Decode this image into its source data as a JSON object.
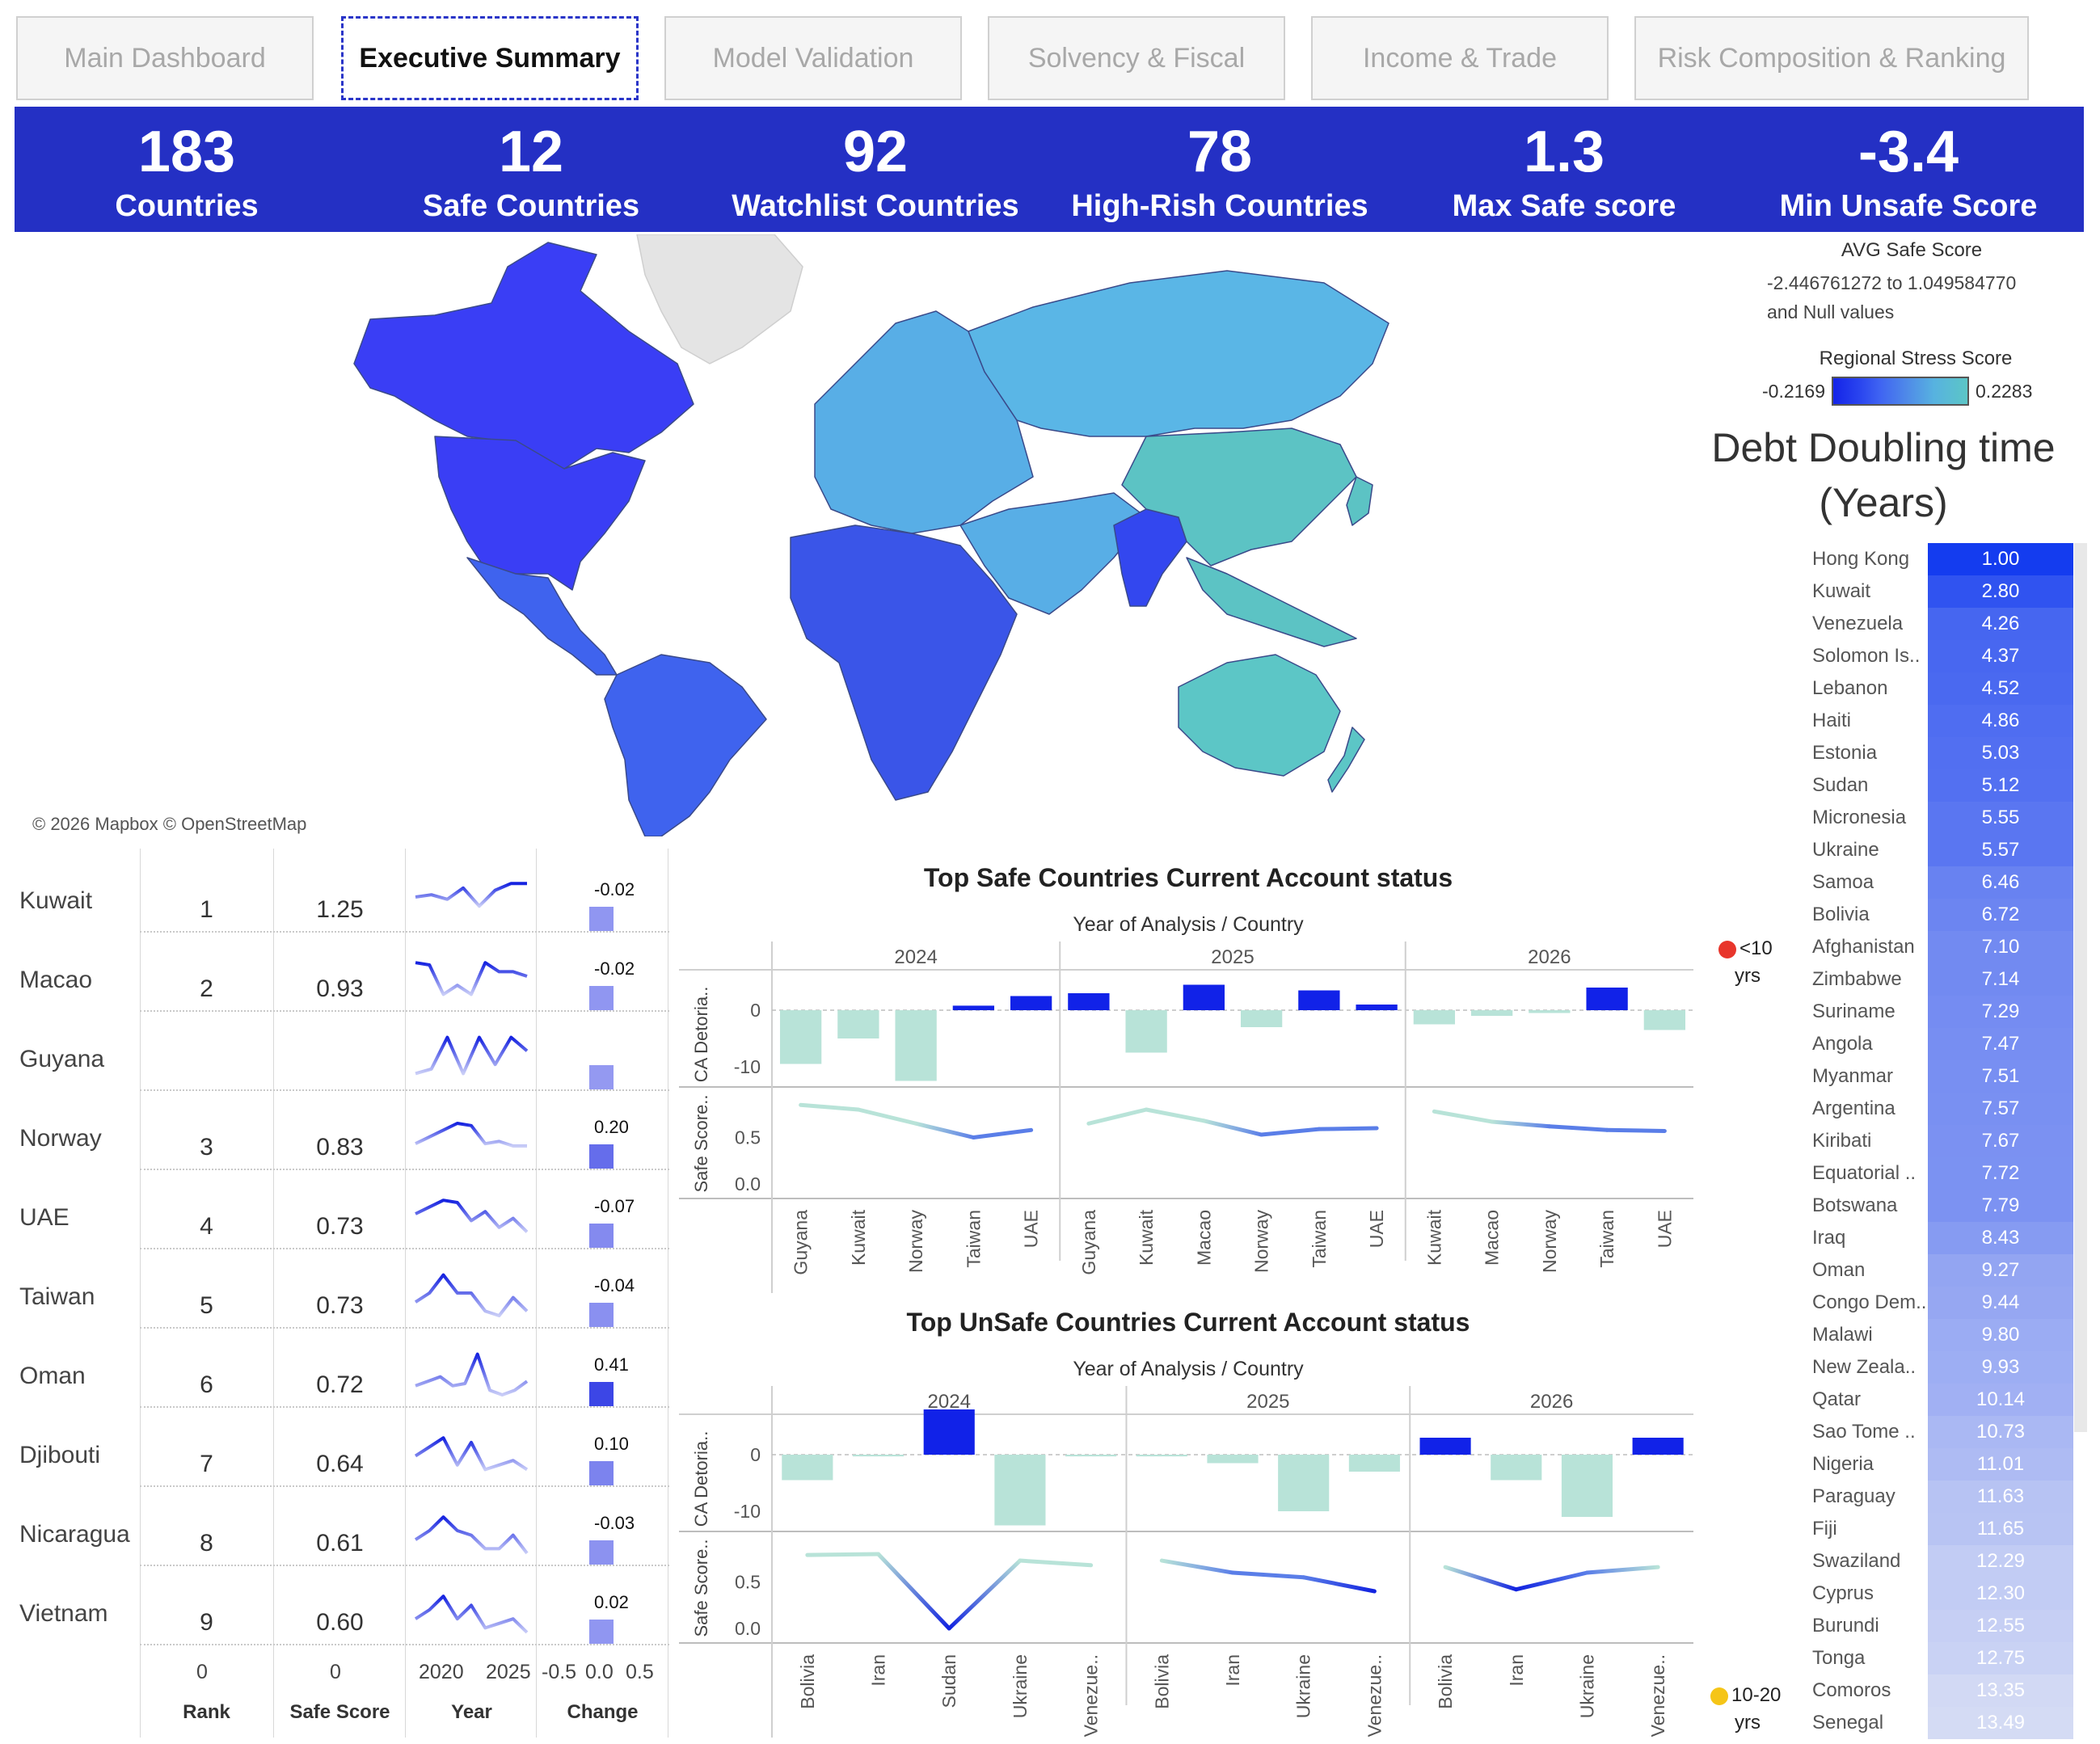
{
  "tabs": [
    {
      "label": "Main Dashboard",
      "active": false
    },
    {
      "label": "Executive Summary",
      "active": true
    },
    {
      "label": "Model Validation",
      "active": false
    },
    {
      "label": "Solvency & Fiscal",
      "active": false
    },
    {
      "label": "Income & Trade",
      "active": false
    },
    {
      "label": "Risk Composition & Ranking",
      "active": false
    }
  ],
  "kpis": [
    {
      "value": "183",
      "label": "Countries"
    },
    {
      "value": "12",
      "label": "Safe Countries"
    },
    {
      "value": "92",
      "label": "Watchlist Countries"
    },
    {
      "value": "78",
      "label": "High-Rish Countries"
    },
    {
      "value": "1.3",
      "label": "Max Safe score"
    },
    {
      "value": "-3.4",
      "label": "Min Unsafe Score"
    }
  ],
  "map": {
    "credit": "© 2026 Mapbox © OpenStreetMap",
    "colors": {
      "americas": "#3a3ef5",
      "latam": "#3f63ee",
      "africa": "#3a55e8",
      "india": "#3347ef",
      "europe": "#58aee6",
      "russia": "#5ab6e6",
      "east_asia": "#5cc3c4",
      "oceania": "#5cc6c6",
      "greenland": "#e4e4e4"
    }
  },
  "avg_safe_legend": {
    "title": "AVG Safe Score",
    "range_line1": "-2.446761272 to 1.049584770",
    "range_line2": "and Null values"
  },
  "stress_legend": {
    "title": "Regional Stress Score",
    "min": "-0.2169",
    "max": "0.2283"
  },
  "debt": {
    "title_line1": "Debt Doubling time",
    "title_line2": "(Years)",
    "rows": [
      {
        "country": "Hong Kong",
        "value": "1.00"
      },
      {
        "country": "Kuwait",
        "value": "2.80"
      },
      {
        "country": "Venezuela",
        "value": "4.26"
      },
      {
        "country": "Solomon Is..",
        "value": "4.37"
      },
      {
        "country": "Lebanon",
        "value": "4.52"
      },
      {
        "country": "Haiti",
        "value": "4.86"
      },
      {
        "country": "Estonia",
        "value": "5.03"
      },
      {
        "country": "Sudan",
        "value": "5.12"
      },
      {
        "country": "Micronesia",
        "value": "5.55"
      },
      {
        "country": "Ukraine",
        "value": "5.57"
      },
      {
        "country": "Samoa",
        "value": "6.46"
      },
      {
        "country": "Bolivia",
        "value": "6.72"
      },
      {
        "country": "Afghanistan",
        "value": "7.10"
      },
      {
        "country": "Zimbabwe",
        "value": "7.14"
      },
      {
        "country": "Suriname",
        "value": "7.29"
      },
      {
        "country": "Angola",
        "value": "7.47"
      },
      {
        "country": "Myanmar",
        "value": "7.51"
      },
      {
        "country": "Argentina",
        "value": "7.57"
      },
      {
        "country": "Kiribati",
        "value": "7.67"
      },
      {
        "country": "Equatorial ..",
        "value": "7.72"
      },
      {
        "country": "Botswana",
        "value": "7.79"
      },
      {
        "country": "Iraq",
        "value": "8.43"
      },
      {
        "country": "Oman",
        "value": "9.27"
      },
      {
        "country": "Congo Dem..",
        "value": "9.44"
      },
      {
        "country": "Malawi",
        "value": "9.80"
      },
      {
        "country": "New Zeala..",
        "value": "9.93"
      },
      {
        "country": "Qatar",
        "value": "10.14"
      },
      {
        "country": "Sao Tome ..",
        "value": "10.73"
      },
      {
        "country": "Nigeria",
        "value": "11.01"
      },
      {
        "country": "Paraguay",
        "value": "11.63"
      },
      {
        "country": "Fiji",
        "value": "11.65"
      },
      {
        "country": "Swaziland",
        "value": "12.29"
      },
      {
        "country": "Cyprus",
        "value": "12.30"
      },
      {
        "country": "Burundi",
        "value": "12.55"
      },
      {
        "country": "Tonga",
        "value": "12.75"
      },
      {
        "country": "Comoros",
        "value": "13.35"
      },
      {
        "country": "Senegal",
        "value": "13.49"
      }
    ],
    "legend_lt10": "<10",
    "legend_lt10_unit": "yrs",
    "legend_10_20": "10-20",
    "legend_10_20_unit": "yrs",
    "legend_lt10_color": "#e8362c",
    "legend_10_20_color": "#f5c518"
  },
  "ranking": {
    "headers": {
      "rank": "Rank",
      "score": "Safe Score",
      "year": "Year",
      "change": "Change"
    },
    "axis": {
      "rank_zero": "0",
      "score_zero": "0",
      "year_2020": "2020",
      "year_2025": "2025",
      "chg_neg": "-0.5",
      "chg_zero": "0.0",
      "chg_pos": "0.5"
    },
    "rows": [
      {
        "country": "Kuwait",
        "rank": "1",
        "score": "1.25",
        "change": "-0.02",
        "spark": [
          0.5,
          0.55,
          0.45,
          0.7,
          0.3,
          0.65,
          0.8,
          0.8
        ]
      },
      {
        "country": "Macao",
        "rank": "2",
        "score": "0.93",
        "change": "-0.02",
        "spark": [
          0.8,
          0.75,
          0.1,
          0.3,
          0.1,
          0.8,
          0.6,
          0.6,
          0.5
        ]
      },
      {
        "country": "Guyana",
        "rank": "",
        "score": "",
        "change": "",
        "spark": [
          0.1,
          0.2,
          0.9,
          0.1,
          0.9,
          0.3,
          0.9,
          0.6
        ]
      },
      {
        "country": "Norway",
        "rank": "3",
        "score": "0.83",
        "change": "0.20",
        "spark": [
          0.3,
          0.45,
          0.6,
          0.75,
          0.7,
          0.3,
          0.35,
          0.25,
          0.25
        ]
      },
      {
        "country": "UAE",
        "rank": "4",
        "score": "0.73",
        "change": "-0.07",
        "spark": [
          0.5,
          0.65,
          0.8,
          0.75,
          0.35,
          0.55,
          0.2,
          0.4,
          0.1
        ]
      },
      {
        "country": "Taiwan",
        "rank": "5",
        "score": "0.73",
        "change": "-0.04",
        "spark": [
          0.3,
          0.5,
          0.9,
          0.5,
          0.5,
          0.1,
          0.0,
          0.4,
          0.1
        ]
      },
      {
        "country": "Oman",
        "rank": "6",
        "score": "0.72",
        "change": "0.41",
        "spark": [
          0.2,
          0.3,
          0.4,
          0.2,
          0.25,
          0.9,
          0.1,
          0.0,
          0.1,
          0.3
        ]
      },
      {
        "country": "Djibouti",
        "rank": "7",
        "score": "0.64",
        "change": "0.10",
        "spark": [
          0.4,
          0.6,
          0.8,
          0.2,
          0.7,
          0.1,
          0.2,
          0.3,
          0.1
        ]
      },
      {
        "country": "Nicaragua",
        "rank": "8",
        "score": "0.61",
        "change": "-0.03",
        "spark": [
          0.3,
          0.5,
          0.8,
          0.5,
          0.4,
          0.1,
          0.1,
          0.4,
          0.0
        ]
      },
      {
        "country": "Vietnam",
        "rank": "9",
        "score": "0.60",
        "change": "0.02",
        "spark": [
          0.3,
          0.5,
          0.8,
          0.3,
          0.6,
          0.1,
          0.2,
          0.3,
          0.0
        ]
      }
    ]
  },
  "safe_chart": {
    "title": "Top Safe Countries Current Account status",
    "subtitle": "Year of Analysis  /  Country",
    "y_label_top": "CA Detoria..",
    "y_label_bottom": "Safe Score..",
    "ticks_top": [
      "0",
      "-10"
    ],
    "ticks_bottom": [
      "0.5",
      "0.0"
    ],
    "positive_color": "#1122e8",
    "negative_color": "#b8e3d8",
    "years": [
      {
        "year": "2024",
        "countries": [
          "Guyana",
          "Kuwait",
          "Norway",
          "Taiwan",
          "UAE"
        ],
        "ca": [
          -9.5,
          -5,
          -12.5,
          0.8,
          2.5
        ],
        "score": [
          0.85,
          0.8,
          0.65,
          0.5,
          0.58
        ]
      },
      {
        "year": "2025",
        "countries": [
          "Guyana",
          "Kuwait",
          "Macao",
          "Norway",
          "Taiwan",
          "UAE"
        ],
        "ca": [
          3,
          -7.5,
          4.5,
          -3,
          3.5,
          1
        ],
        "score": [
          0.65,
          0.8,
          0.68,
          0.53,
          0.59,
          0.6
        ]
      },
      {
        "year": "2026",
        "countries": [
          "Kuwait",
          "Macao",
          "Norway",
          "Taiwan",
          "UAE"
        ],
        "ca": [
          -2.5,
          -1,
          -0.5,
          4,
          -3.5
        ],
        "score": [
          0.78,
          0.67,
          0.62,
          0.58,
          0.57
        ]
      }
    ]
  },
  "unsafe_chart": {
    "title": "Top UnSafe Countries Current Account status",
    "subtitle": "Year of Analysis  /  Country",
    "y_label_top": "CA Detoria..",
    "y_label_bottom": "Safe Score..",
    "ticks_top": [
      "0",
      "-10"
    ],
    "ticks_bottom": [
      "0.5",
      "0.0"
    ],
    "positive_color": "#1122e8",
    "negative_color": "#b8e3d8",
    "years": [
      {
        "year": "2024",
        "countries": [
          "Bolivia",
          "Iran",
          "Sudan",
          "Ukraine",
          "Venezue.."
        ],
        "ca": [
          -4.5,
          -0.3,
          8,
          -12.5,
          -0.3
        ],
        "score": [
          0.79,
          0.8,
          0.0,
          0.73,
          0.68
        ]
      },
      {
        "year": "2025",
        "countries": [
          "Bolivia",
          "Iran",
          "Ukraine",
          "Venezue.."
        ],
        "ca": [
          -0.3,
          -1.5,
          -10,
          -3
        ],
        "score": [
          0.73,
          0.6,
          0.55,
          0.4
        ]
      },
      {
        "year": "2026",
        "countries": [
          "Bolivia",
          "Iran",
          "Ukraine",
          "Venezue.."
        ],
        "ca": [
          3,
          -4.5,
          -11,
          3
        ],
        "score": [
          0.66,
          0.42,
          0.6,
          0.66
        ]
      }
    ]
  }
}
